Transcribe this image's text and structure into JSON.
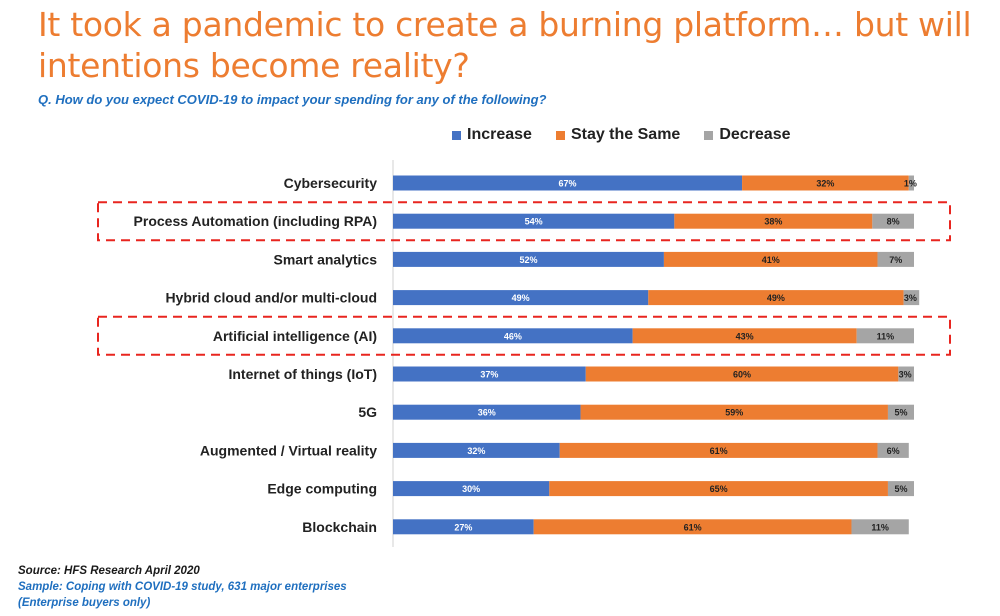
{
  "title": "It took a pandemic to create a burning platform… but will intentions become reality?",
  "question": "Q. How do you expect COVID-19 to impact your spending for any of the following?",
  "colors": {
    "title": "#ED7D31",
    "question": "#1F6FBF",
    "increase": "#4472C4",
    "same": "#ED7D31",
    "decrease": "#A5A5A5",
    "highlight": "#E8251F"
  },
  "chart_data": {
    "type": "bar",
    "orientation": "horizontal",
    "stacked": true,
    "percent": true,
    "legend_position": "top",
    "categories": [
      "Cybersecurity",
      "Process Automation (including RPA)",
      "Smart analytics",
      "Hybrid cloud and/or multi-cloud",
      "Artificial intelligence (AI)",
      "Internet of things (IoT)",
      "5G",
      "Augmented / Virtual reality",
      "Edge computing",
      "Blockchain"
    ],
    "series": [
      {
        "name": "Increase",
        "color": "#4472C4",
        "values": [
          67,
          54,
          52,
          49,
          46,
          37,
          36,
          32,
          30,
          27
        ]
      },
      {
        "name": "Stay the Same",
        "color": "#ED7D31",
        "values": [
          32,
          38,
          41,
          49,
          43,
          60,
          59,
          61,
          65,
          61
        ]
      },
      {
        "name": "Decrease",
        "color": "#A5A5A5",
        "values": [
          1,
          8,
          7,
          3,
          11,
          3,
          5,
          6,
          5,
          11
        ]
      }
    ],
    "highlighted_categories": [
      "Process Automation (including RPA)",
      "Artificial intelligence (AI)"
    ],
    "xlim": [
      0,
      100
    ]
  },
  "source": {
    "line1": "Source: HFS Research April 2020",
    "line2": "Sample: Coping with COVID-19 study, 631 major enterprises",
    "line3": "(Enterprise buyers only)"
  }
}
